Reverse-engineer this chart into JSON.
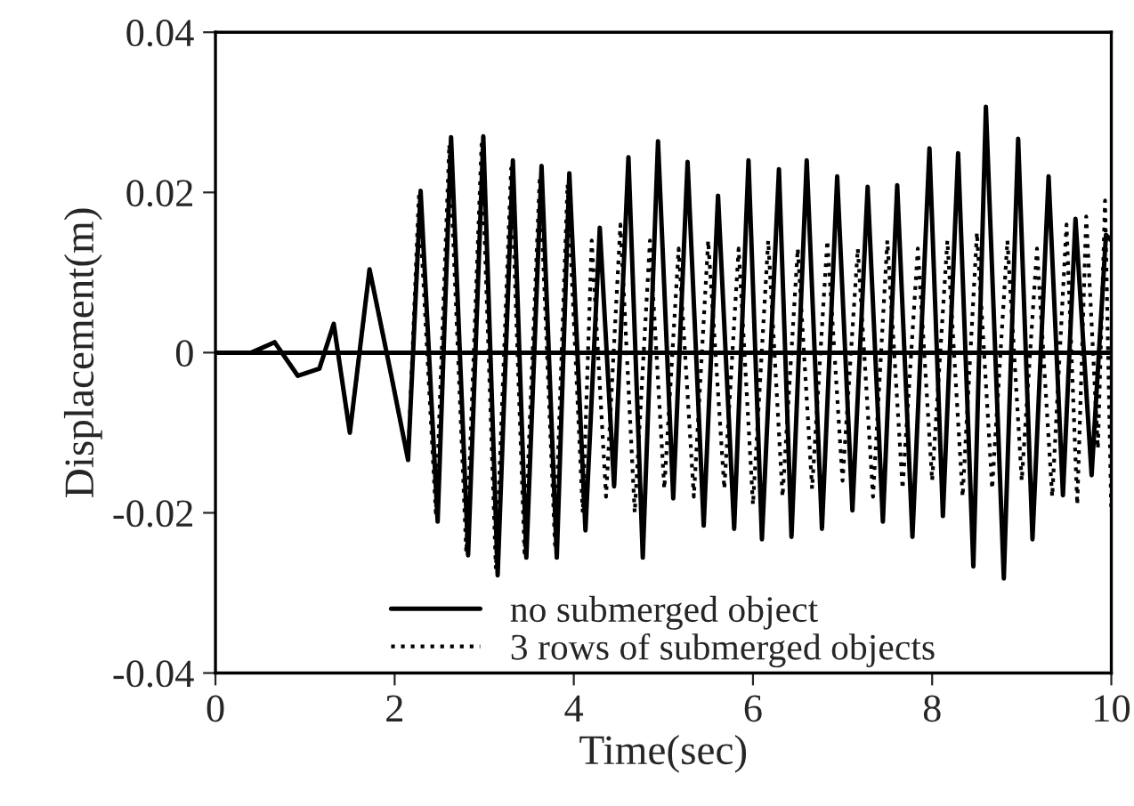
{
  "chart_data": {
    "type": "line",
    "xlabel": "Time(sec)",
    "ylabel": "Displacement(m)",
    "xlim": [
      0,
      10
    ],
    "xticks": [
      0,
      2,
      4,
      6,
      8,
      10
    ],
    "ylim": [
      -0.04,
      0.04
    ],
    "yticks": [
      {
        "value": -0.04,
        "label": "-0.04"
      },
      {
        "value": -0.02,
        "label": "-0.02"
      },
      {
        "value": 0,
        "label": "0"
      },
      {
        "value": 0.02,
        "label": "0.02"
      },
      {
        "value": 0.04,
        "label": "0.04"
      }
    ],
    "grid": false,
    "legend": "bottom",
    "ref_lines": [
      {
        "axis": "y",
        "value": 0,
        "color": "#000000",
        "line_style": "solid"
      }
    ],
    "series": [
      {
        "name": "no submerged object",
        "color": "#000000",
        "line_style": "solid",
        "x": [
          0,
          0.4,
          0.66,
          0.92,
          1.16,
          1.32,
          1.5,
          1.72,
          1.96,
          2.15,
          2.29,
          2.48,
          2.63,
          2.82,
          2.99,
          3.15,
          3.32,
          3.47,
          3.64,
          3.81,
          3.95,
          4.13,
          4.29,
          4.45,
          4.61,
          4.77,
          4.94,
          5.11,
          5.27,
          5.45,
          5.61,
          5.79,
          5.95,
          6.1,
          6.29,
          6.43,
          6.6,
          6.77,
          6.94,
          7.11,
          7.28,
          7.45,
          7.61,
          7.78,
          7.97,
          8.12,
          8.29,
          8.46,
          8.6,
          8.8,
          8.96,
          9.12,
          9.3,
          9.46,
          9.6,
          9.78,
          9.94,
          10
        ],
        "values": [
          0,
          0,
          0.0013,
          -0.0029,
          -0.002,
          0.0036,
          -0.01,
          0.0104,
          -0.0027,
          -0.0134,
          0.0202,
          -0.0211,
          0.0269,
          -0.0253,
          0.027,
          -0.0278,
          0.024,
          -0.0256,
          0.0233,
          -0.0256,
          0.0224,
          -0.0222,
          0.0156,
          -0.0167,
          0.0244,
          -0.0256,
          0.0264,
          -0.0182,
          0.0238,
          -0.0216,
          0.0196,
          -0.022,
          0.024,
          -0.0233,
          0.0229,
          -0.023,
          0.024,
          -0.022,
          0.022,
          -0.0197,
          0.0207,
          -0.0211,
          0.0209,
          -0.023,
          0.0255,
          -0.0204,
          0.0249,
          -0.0267,
          0.0307,
          -0.0282,
          0.0267,
          -0.0233,
          0.022,
          -0.0178,
          0.0167,
          -0.0153,
          0.0147,
          0.014
        ]
      },
      {
        "name": "3 rows of submerged objects",
        "color": "#000000",
        "line_style": "dotted",
        "x": [
          0,
          0.4,
          0.66,
          0.92,
          1.16,
          1.32,
          1.5,
          1.72,
          1.96,
          2.15,
          2.27,
          2.46,
          2.61,
          2.8,
          2.97,
          3.13,
          3.3,
          3.45,
          3.62,
          3.79,
          3.93,
          4.1,
          4.2,
          4.36,
          4.52,
          4.68,
          4.85,
          5.01,
          5.17,
          5.34,
          5.5,
          5.68,
          5.84,
          6.0,
          6.17,
          6.33,
          6.5,
          6.66,
          6.83,
          7.0,
          7.17,
          7.34,
          7.5,
          7.67,
          7.84,
          8.0,
          8.17,
          8.34,
          8.5,
          8.67,
          8.84,
          9.0,
          9.17,
          9.34,
          9.5,
          9.62,
          9.72,
          9.85,
          9.93,
          10
        ],
        "values": [
          0,
          0,
          0.0013,
          -0.0029,
          -0.002,
          0.0036,
          -0.01,
          0.0104,
          -0.0027,
          -0.0134,
          0.0195,
          -0.02,
          0.026,
          -0.025,
          0.026,
          -0.027,
          0.023,
          -0.025,
          0.022,
          -0.024,
          0.021,
          -0.02,
          0.014,
          -0.018,
          0.016,
          -0.02,
          0.014,
          -0.017,
          0.013,
          -0.018,
          0.014,
          -0.017,
          0.013,
          -0.019,
          0.014,
          -0.018,
          0.013,
          -0.017,
          0.014,
          -0.016,
          0.013,
          -0.018,
          0.014,
          -0.017,
          0.013,
          -0.016,
          0.014,
          -0.018,
          0.015,
          -0.017,
          0.014,
          -0.016,
          0.013,
          -0.018,
          0.016,
          -0.019,
          0.017,
          -0.012,
          0.019,
          -0.02
        ]
      }
    ]
  }
}
